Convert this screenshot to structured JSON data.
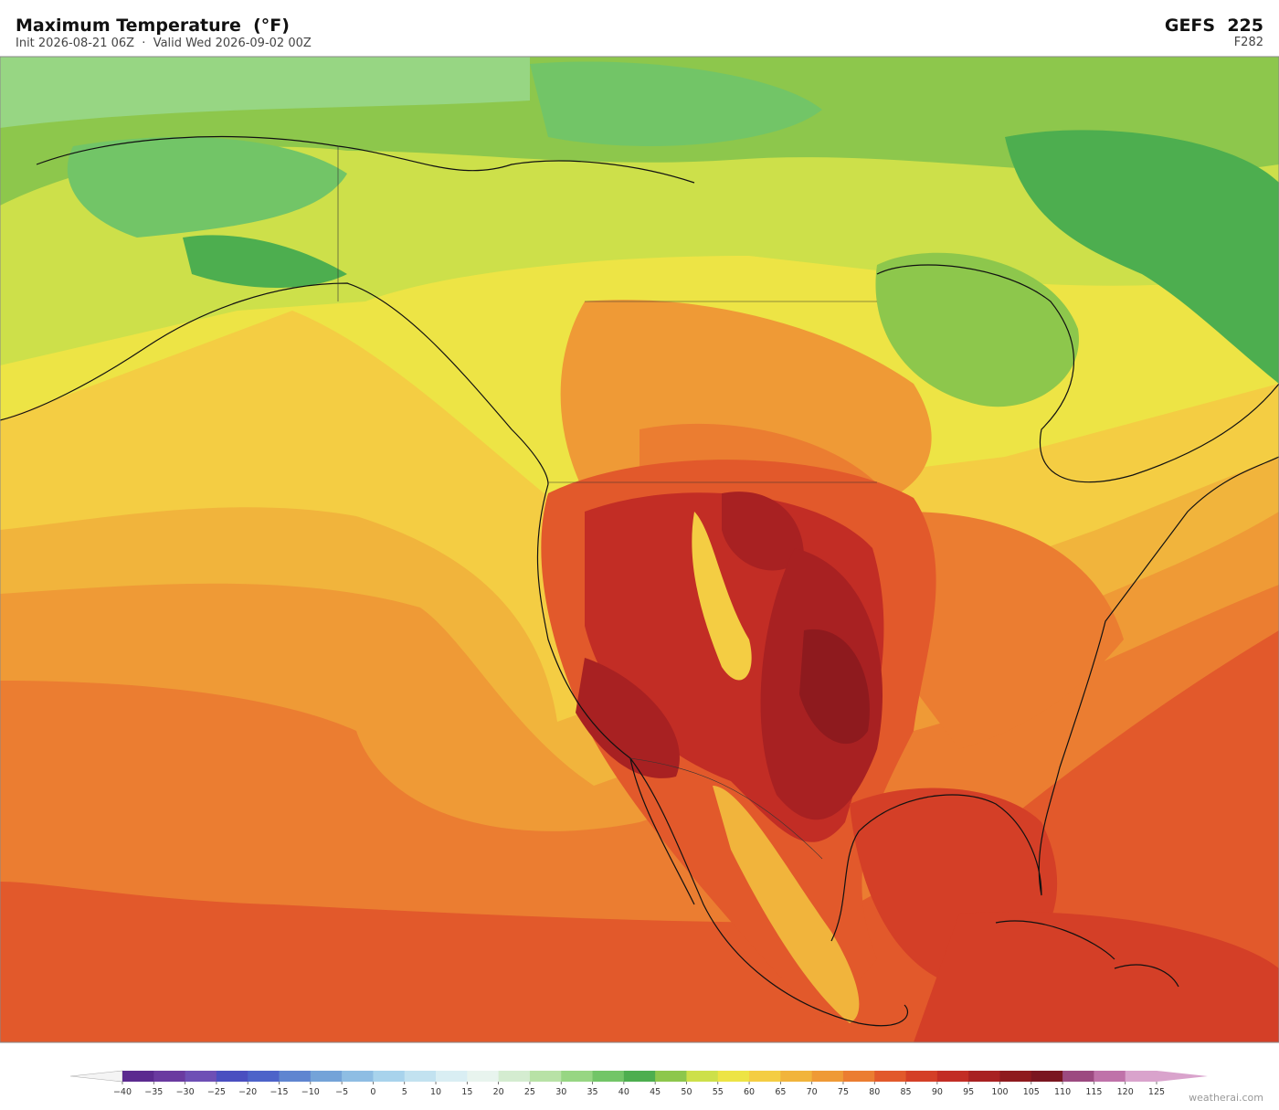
{
  "header": {
    "title": "Maximum Temperature  (°F)",
    "subtitle": "Init 2026-08-21 06Z  ·  Valid Wed 2026-09-02 00Z",
    "model": "GEFS  225",
    "forecast_hour": "F282"
  },
  "colorbar": {
    "ticks": [
      {
        "value": -40,
        "label": "−40"
      },
      {
        "value": -35,
        "label": "−35"
      },
      {
        "value": -30,
        "label": "−30"
      },
      {
        "value": -25,
        "label": "−25"
      },
      {
        "value": -20,
        "label": "−20"
      },
      {
        "value": -15,
        "label": "−15"
      },
      {
        "value": -10,
        "label": "−10"
      },
      {
        "value": -5,
        "label": "−5"
      },
      0,
      5,
      10,
      15,
      20,
      25,
      30,
      35,
      40,
      45,
      50,
      55,
      60,
      65,
      70,
      75,
      80,
      85,
      90,
      95,
      100,
      105,
      110,
      115,
      120,
      125
    ],
    "colors": [
      "#5b2a8f",
      "#6a3aa0",
      "#6e4fb5",
      "#4a4fc0",
      "#4d63c9",
      "#5f85d0",
      "#74a3d8",
      "#8ebde3",
      "#a8d3ec",
      "#c2e2f0",
      "#d9eef3",
      "#e8f4ee",
      "#d4ecd0",
      "#b8e2a6",
      "#97d683",
      "#72c567",
      "#4dae4f",
      "#8dc74c",
      "#cde04a",
      "#ede445",
      "#f4cd43",
      "#f1b43c",
      "#ef9a36",
      "#eb7d31",
      "#e2592b",
      "#d43f27",
      "#c22d25",
      "#a82122",
      "#8e1a1e",
      "#7a1620",
      "#9c4a80",
      "#bf72a9",
      "#d9a3cc"
    ],
    "under_color": "#f4f4f4",
    "over_color": "#d9a3cc"
  },
  "watermark": "weatherai.com"
}
